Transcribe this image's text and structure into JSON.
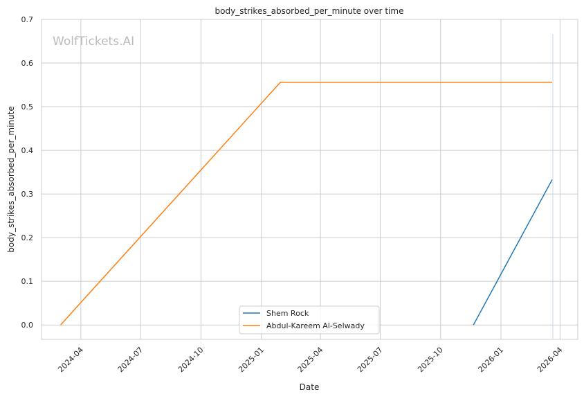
{
  "chart_data": {
    "type": "line",
    "title": "body_strikes_absorbed_per_minute over time",
    "xlabel": "Date",
    "ylabel": "body_strikes_absorbed_per_minute",
    "watermark": "WolfTickets.AI",
    "xlim": [
      "2024-02-01",
      "2026-04-28"
    ],
    "ylim": [
      -0.033,
      0.7
    ],
    "grid": true,
    "legend_position": "bottom-center",
    "x_ticks": [
      "2024-04",
      "2024-07",
      "2024-10",
      "2025-01",
      "2025-04",
      "2025-07",
      "2025-10",
      "2026-01",
      "2026-04"
    ],
    "y_ticks": [
      "0.0",
      "0.1",
      "0.2",
      "0.3",
      "0.4",
      "0.5",
      "0.6",
      "0.7"
    ],
    "series": [
      {
        "name": "Shem Rock",
        "color": "#1f77b4",
        "x": [
          "2025-11-20",
          "2026-03-20"
        ],
        "y": [
          0.0,
          0.333
        ]
      },
      {
        "name": "Abdul-Kareem Al-Selwady",
        "color": "#ff7f0e",
        "x": [
          "2024-03-01",
          "2025-01-30",
          "2026-03-20"
        ],
        "y": [
          0.0,
          0.556,
          0.556
        ]
      }
    ]
  }
}
